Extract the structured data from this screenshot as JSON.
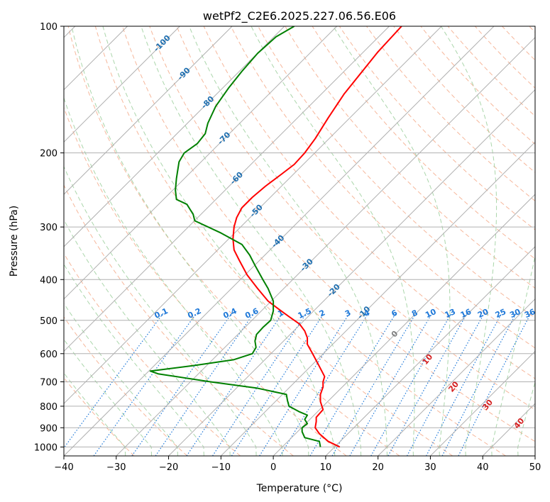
{
  "chart_data": {
    "type": "line",
    "title": "wetPf2_C2E6.2025.227.06.56.E06",
    "xlabel": "Temperature (°C)",
    "ylabel": "Pressure (hPa)",
    "xlim": [
      -40,
      50
    ],
    "ylim": [
      1050,
      100
    ],
    "y_scale": "log",
    "grid": true,
    "x_ticks": [
      -40,
      -30,
      -20,
      -10,
      0,
      10,
      20,
      30,
      40,
      50
    ],
    "y_ticks": [
      100,
      200,
      300,
      400,
      500,
      600,
      700,
      800,
      900,
      1000
    ],
    "colors": {
      "temperature": "#ff0000",
      "dewpoint": "#008000",
      "isotherm": "#b0b0b0",
      "dry_adiabat": "#f4a582",
      "moist_adiabat": "#9ccf9c",
      "mixing_ratio": "#1e78d8",
      "isotherm_label": "#1f6fb0",
      "moist_label": "#d42020",
      "zero_label": "#808080"
    },
    "series": [
      {
        "key": "temperature",
        "points": [
          [
            12.7,
            1000
          ],
          [
            10.5,
            970
          ],
          [
            8.8,
            930
          ],
          [
            8.0,
            900
          ],
          [
            8.2,
            870
          ],
          [
            8.2,
            850
          ],
          [
            9.5,
            815
          ],
          [
            9.0,
            780
          ],
          [
            9.0,
            750
          ],
          [
            9.5,
            720
          ],
          [
            9.5,
            700
          ],
          [
            9.8,
            680
          ],
          [
            8.7,
            640
          ],
          [
            7.5,
            600
          ],
          [
            6.5,
            570
          ],
          [
            6.5,
            550
          ],
          [
            6.0,
            530
          ],
          [
            5.0,
            510
          ],
          [
            3.0,
            490
          ],
          [
            1.0,
            470
          ],
          [
            -1.0,
            450
          ],
          [
            -3.0,
            420
          ],
          [
            -5.0,
            390
          ],
          [
            -6.5,
            360
          ],
          [
            -7.5,
            340
          ],
          [
            -7.7,
            320
          ],
          [
            -7.5,
            300
          ],
          [
            -7.0,
            285
          ],
          [
            -6.0,
            270
          ],
          [
            -4.0,
            255
          ],
          [
            -1.5,
            240
          ],
          [
            1.5,
            225
          ],
          [
            4.0,
            213
          ],
          [
            6.0,
            200
          ],
          [
            8.0,
            185
          ],
          [
            10.5,
            165
          ],
          [
            13.5,
            145
          ],
          [
            17.0,
            128
          ],
          [
            20.0,
            115
          ],
          [
            24.5,
            100
          ]
        ]
      },
      {
        "key": "dewpoint",
        "points": [
          [
            9.0,
            1000
          ],
          [
            8.8,
            970
          ],
          [
            6.0,
            950
          ],
          [
            5.5,
            920
          ],
          [
            5.5,
            900
          ],
          [
            6.5,
            880
          ],
          [
            6.0,
            860
          ],
          [
            6.5,
            840
          ],
          [
            5.0,
            825
          ],
          [
            3.0,
            800
          ],
          [
            2.7,
            775
          ],
          [
            2.5,
            750
          ],
          [
            -3.0,
            725
          ],
          [
            -12.0,
            700
          ],
          [
            -22.0,
            670
          ],
          [
            -23.5,
            660
          ],
          [
            -15.0,
            640
          ],
          [
            -7.5,
            620
          ],
          [
            -4.0,
            600
          ],
          [
            -3.3,
            580
          ],
          [
            -3.5,
            560
          ],
          [
            -3.2,
            540
          ],
          [
            -2.0,
            520
          ],
          [
            -0.5,
            500
          ],
          [
            0.0,
            475
          ],
          [
            0.0,
            450
          ],
          [
            -1.0,
            420
          ],
          [
            -2.0,
            400
          ],
          [
            -3.5,
            370
          ],
          [
            -4.5,
            350
          ],
          [
            -6.0,
            330
          ],
          [
            -10.0,
            310
          ],
          [
            -15.0,
            290
          ],
          [
            -15.3,
            280
          ],
          [
            -16.5,
            265
          ],
          [
            -18.5,
            258
          ],
          [
            -18.7,
            245
          ],
          [
            -18.5,
            230
          ],
          [
            -18.0,
            210
          ],
          [
            -17.0,
            200
          ],
          [
            -14.5,
            190
          ],
          [
            -13.0,
            180
          ],
          [
            -12.5,
            170
          ],
          [
            -11.0,
            155
          ],
          [
            -8.5,
            140
          ],
          [
            -6.0,
            128
          ],
          [
            -3.0,
            116
          ],
          [
            0.5,
            106
          ],
          [
            4.0,
            100
          ]
        ]
      }
    ],
    "isotherm_labels": [
      "-100",
      "-90",
      "-80",
      "-70",
      "-60",
      "-50",
      "-40",
      "-30",
      "-20",
      "-10",
      "0"
    ],
    "mixing_ratio_labels": [
      "0.1",
      "0.2",
      "0.4",
      "0.6",
      "1",
      "1.5",
      "2",
      "3",
      "4",
      "6",
      "8",
      "10",
      "13",
      "16",
      "20",
      "25",
      "30",
      "36"
    ],
    "moist_adiabat_labels": [
      "10",
      "20",
      "30",
      "40"
    ]
  }
}
